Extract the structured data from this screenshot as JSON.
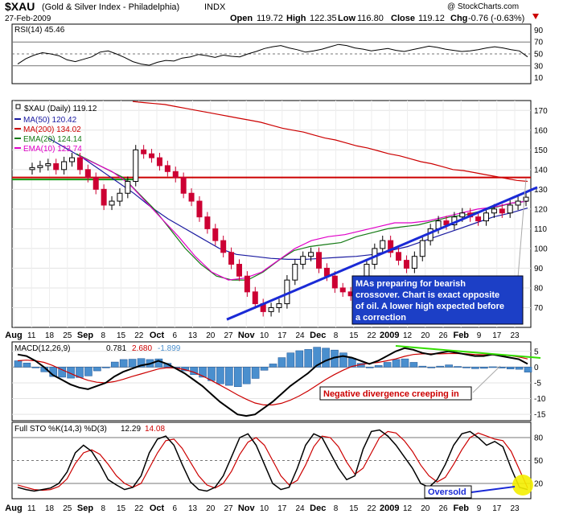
{
  "colors": {
    "ma50": "#1a1aa0",
    "ma200": "#cc0000",
    "ema20": "#157a15",
    "ema10": "#e000c8",
    "trend": "#1a2ad6",
    "resist": "#cc0000",
    "support": "#119911",
    "candle_up": "#000000",
    "candle_down": "#cc0033",
    "macd_hist": "#4a8fce",
    "note_bg": "#1c3fc6",
    "annot_red": "#cc0000",
    "green_line": "#33dd00",
    "highlight": "#f4ee00"
  },
  "header": {
    "symbol": "$XAU",
    "name": "(Gold & Silver Index - Philadelphia)",
    "exchange": "INDX",
    "date": "27-Feb-2009",
    "watermark": "@ StockCharts.com",
    "open_label": "Open",
    "open": "119.72",
    "high_label": "High",
    "high": "122.35",
    "low_label": "Low",
    "low": "116.80",
    "close_label": "Close",
    "close": "119.12",
    "chg_label": "Chg",
    "chg": "-0.76 (-0.63%)"
  },
  "chart_data": [
    {
      "type": "line",
      "panel": "rsi",
      "title": "RSI(14) 45.46",
      "ylim": [
        0,
        100
      ],
      "yticks": [
        "90",
        "70",
        "50",
        "30",
        "10"
      ],
      "levels": [
        70,
        50,
        30
      ],
      "values": [
        33,
        42,
        48,
        52,
        50,
        47,
        40,
        37,
        41,
        45,
        53,
        55,
        50,
        44,
        37,
        33,
        31,
        36,
        39,
        38,
        43,
        45,
        49,
        47,
        44,
        48,
        46,
        45,
        50,
        54,
        59,
        62,
        64,
        60,
        57,
        53,
        55,
        58,
        62,
        66,
        64,
        60,
        58,
        55,
        57,
        59,
        56,
        54,
        57,
        60,
        63,
        61,
        58,
        56,
        54,
        55,
        57,
        60,
        62,
        60,
        57,
        55,
        45
      ]
    },
    {
      "type": "candlestick",
      "panel": "price",
      "title": "$XAU (Daily) 119.12",
      "legend": [
        "MA(50) 120.42",
        "MA(200) 134.02",
        "EMA(20) 124.14",
        "EMA(10) 123.74"
      ],
      "ylim": [
        60,
        175
      ],
      "yticks": [
        "170",
        "160",
        "150",
        "140",
        "130",
        "120",
        "110",
        "100",
        "90",
        "80",
        "70"
      ],
      "x_labels": [
        "Aug",
        "11",
        "18",
        "25",
        "Sep",
        "8",
        "15",
        "22",
        "Oct",
        "6",
        "13",
        "20",
        "27",
        "Nov",
        "10",
        "17",
        "24",
        "Dec",
        "8",
        "15",
        "22",
        "2009",
        "12",
        "20",
        "26",
        "Feb",
        "9",
        "17",
        "23"
      ],
      "closes": [
        141,
        142,
        143,
        140,
        144,
        146,
        140,
        136,
        130,
        122,
        124,
        128,
        134,
        150,
        148,
        146,
        142,
        139,
        136,
        128,
        124,
        116,
        110,
        104,
        98,
        92,
        86,
        78,
        72,
        68,
        70,
        72,
        84,
        92,
        96,
        98,
        90,
        86,
        80,
        78,
        76,
        82,
        92,
        100,
        104,
        98,
        94,
        90,
        96,
        104,
        110,
        114,
        112,
        116,
        118,
        116,
        114,
        118,
        120,
        118,
        122,
        124,
        126
      ],
      "ma200": [
        174.5,
        174,
        173.5,
        173,
        172,
        171,
        170,
        169,
        168,
        167,
        166,
        165,
        164,
        162.5,
        161,
        160,
        159,
        157.5,
        156,
        155,
        153.5,
        152,
        151,
        149.5,
        148,
        147,
        145.5,
        144,
        143,
        141.5,
        140,
        139.5,
        138.5,
        137.5,
        136.5,
        135.5,
        134.5,
        134
      ],
      "ma50": [
        156,
        151,
        146,
        140,
        134,
        128,
        121,
        115,
        110,
        105,
        100,
        97,
        96,
        95,
        94.5,
        94.5,
        95,
        95.5,
        96,
        97,
        99,
        101,
        104,
        107,
        110,
        113,
        116,
        118,
        120.5
      ],
      "ema20": [
        148,
        144,
        140,
        136,
        128,
        120,
        110,
        100,
        92,
        86,
        84,
        84,
        88,
        94,
        99,
        101,
        102,
        103,
        106,
        108,
        110,
        111,
        112,
        114,
        116,
        117,
        119,
        121,
        123,
        124
      ],
      "ema10": [
        147,
        143,
        139,
        133,
        124,
        115,
        106,
        96,
        88,
        84,
        85,
        88,
        94,
        100,
        104,
        106,
        107,
        109,
        111,
        113,
        113,
        114,
        116,
        118,
        120,
        121,
        123,
        124
      ]
    },
    {
      "type": "line",
      "panel": "macd",
      "title": "MACD(12,26,9)",
      "macd_value": "0.781",
      "signal_value": "2.680",
      "hist_value": "-1.899",
      "ylim": [
        -17,
        8
      ],
      "yticks": [
        "5",
        "0",
        "-5",
        "-10",
        "-15"
      ],
      "macd": [
        4,
        3.5,
        2,
        0,
        -2.5,
        -4,
        -5.5,
        -6.5,
        -7,
        -6,
        -5,
        -3,
        -1.5,
        -0.5,
        0.5,
        1,
        2,
        1,
        -0.5,
        -2,
        -4,
        -6,
        -8.5,
        -11,
        -13,
        -15,
        -15.5,
        -15,
        -13,
        -11,
        -8.5,
        -6,
        -4,
        -2,
        0.5,
        2,
        3,
        3.5,
        3,
        2,
        1,
        2,
        3.5,
        5,
        6,
        5.5,
        4.5,
        4,
        4.5,
        5,
        4.5,
        4,
        3.5,
        3.5,
        4,
        3.5,
        3,
        2.5,
        1
      ],
      "signal": [
        2,
        2.2,
        2,
        1.5,
        0.5,
        -0.8,
        -2,
        -3.2,
        -4.2,
        -4.8,
        -5,
        -4.6,
        -3.9,
        -3,
        -2.2,
        -1.4,
        -0.6,
        -0.2,
        -0.3,
        -0.8,
        -1.6,
        -2.8,
        -4.2,
        -5.7,
        -7.2,
        -8.8,
        -10.2,
        -11.4,
        -12,
        -12,
        -11.5,
        -10.5,
        -9.2,
        -7.6,
        -5.8,
        -4,
        -2.4,
        -1,
        0.2,
        0.8,
        1.2,
        1.5,
        2,
        2.6,
        3.4,
        4,
        4.2,
        4.2,
        4.2,
        4.3,
        4.3,
        4.2,
        4,
        3.9,
        3.9,
        3.8,
        3.6,
        3.2,
        2.6
      ]
    },
    {
      "type": "line",
      "panel": "stochastic",
      "title": "Full STO %K(14,3) %D(3)",
      "k_value": "12.29",
      "d_value": "14.08",
      "ylim": [
        0,
        100
      ],
      "yticks": [
        "80",
        "50",
        "20"
      ],
      "k": [
        15,
        12,
        10,
        12,
        14,
        20,
        35,
        60,
        70,
        62,
        45,
        25,
        18,
        12,
        15,
        30,
        60,
        78,
        82,
        70,
        45,
        22,
        12,
        10,
        15,
        30,
        55,
        80,
        85,
        70,
        45,
        20,
        12,
        15,
        40,
        70,
        85,
        80,
        60,
        40,
        25,
        30,
        65,
        88,
        90,
        82,
        70,
        55,
        40,
        20,
        15,
        25,
        45,
        70,
        85,
        88,
        80,
        70,
        75,
        68,
        40,
        15,
        12
      ],
      "d": [
        18,
        15,
        12,
        11,
        12,
        16,
        26,
        46,
        60,
        64,
        58,
        45,
        30,
        20,
        15,
        20,
        40,
        60,
        76,
        78,
        66,
        48,
        30,
        18,
        14,
        20,
        36,
        58,
        74,
        80,
        70,
        50,
        30,
        18,
        24,
        44,
        68,
        82,
        80,
        68,
        48,
        32,
        40,
        60,
        80,
        88,
        86,
        76,
        62,
        44,
        30,
        22,
        28,
        45,
        64,
        80,
        86,
        82,
        78,
        76,
        62,
        38,
        14
      ]
    }
  ],
  "annotations": {
    "note_line1": "MAs preparing for bearish",
    "note_line2": "crossover. Chart is exact opposite",
    "note_line3": "of oil.  A lower high expected before",
    "note_line4": "a correction",
    "divergence": "Negative divergence creeping in",
    "oversold": "Oversold"
  }
}
